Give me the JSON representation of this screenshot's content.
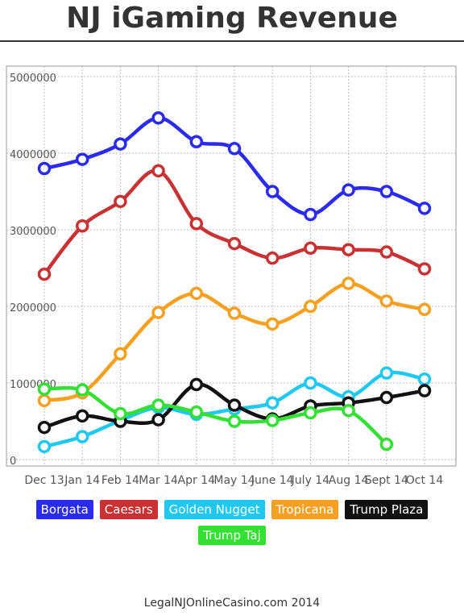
{
  "chart_data": {
    "type": "line",
    "title": "NJ iGaming Revenue",
    "xlabel": "",
    "ylabel": "",
    "categories": [
      "Dec 13",
      "Jan 14",
      "Feb 14",
      "Mar 14",
      "Apr 14",
      "May 14",
      "June 14",
      "July 14",
      "Aug 14",
      "Sept 14",
      "Oct 14"
    ],
    "ylim": [
      0,
      5000000
    ],
    "yticks": [
      0,
      1000000,
      2000000,
      3000000,
      4000000,
      5000000
    ],
    "ytick_labels": [
      "0",
      "1000000",
      "2000000",
      "3000000",
      "4000000",
      "5000000"
    ],
    "grid": true,
    "legend_position": "bottom",
    "series": [
      {
        "name": "Borgata",
        "color": "#2b2bf0",
        "values": [
          3800000,
          3920000,
          4120000,
          4460000,
          4150000,
          4060000,
          3500000,
          3200000,
          3520000,
          3500000,
          3280000
        ]
      },
      {
        "name": "Caesars",
        "color": "#c83232",
        "values": [
          2420000,
          3050000,
          3370000,
          3770000,
          3080000,
          2820000,
          2630000,
          2760000,
          2740000,
          2710000,
          2490000
        ]
      },
      {
        "name": "Golden Nugget",
        "color": "#1ec8f0",
        "values": [
          170000,
          300000,
          510000,
          680000,
          590000,
          660000,
          740000,
          1000000,
          820000,
          1130000,
          1050000
        ]
      },
      {
        "name": "Tropicana",
        "color": "#f5a020",
        "values": [
          770000,
          870000,
          1380000,
          1920000,
          2170000,
          1910000,
          1770000,
          2000000,
          2300000,
          2070000,
          1960000
        ]
      },
      {
        "name": "Trump Plaza",
        "color": "#111111",
        "values": [
          420000,
          570000,
          500000,
          520000,
          980000,
          710000,
          530000,
          700000,
          740000,
          810000,
          900000
        ]
      },
      {
        "name": "Trump Taj",
        "color": "#33e033",
        "values": [
          920000,
          910000,
          600000,
          710000,
          620000,
          500000,
          510000,
          610000,
          640000,
          200000,
          null
        ]
      }
    ]
  },
  "page": {
    "title": "NJ iGaming Revenue",
    "credit": "LegalNJOnlineCasino.com 2014"
  }
}
